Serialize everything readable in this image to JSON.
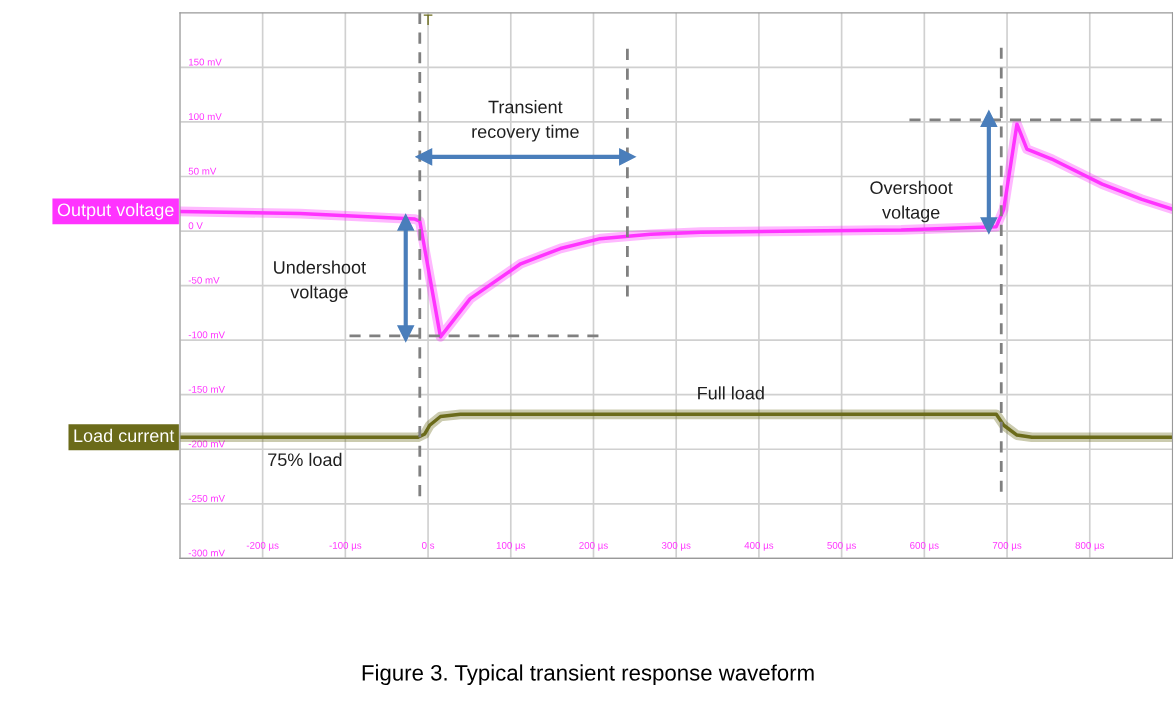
{
  "chart_data": {
    "type": "line",
    "xlim": [
      -300,
      900
    ],
    "ylim": [
      -300,
      200
    ],
    "xticks": [
      {
        "value": -300,
        "label": null
      },
      {
        "value": -200,
        "label": "-200 µs"
      },
      {
        "value": -100,
        "label": "-100 µs"
      },
      {
        "value": 0,
        "label": "0 s"
      },
      {
        "value": 100,
        "label": "100 µs"
      },
      {
        "value": 200,
        "label": "200 µs"
      },
      {
        "value": 300,
        "label": "300 µs"
      },
      {
        "value": 400,
        "label": "400 µs"
      },
      {
        "value": 500,
        "label": "500 µs"
      },
      {
        "value": 600,
        "label": "600 µs"
      },
      {
        "value": 700,
        "label": "700 µs"
      },
      {
        "value": 800,
        "label": "800 µs"
      }
    ],
    "yticks": [
      {
        "value": -300,
        "label": "-300 mV"
      },
      {
        "value": -250,
        "label": "-250 mV"
      },
      {
        "value": -200,
        "label": "-200 mV"
      },
      {
        "value": -150,
        "label": "-150 mV"
      },
      {
        "value": -100,
        "label": "-100 mV"
      },
      {
        "value": -50,
        "label": "-50 mV"
      },
      {
        "value": 0,
        "label": "0 V"
      },
      {
        "value": 50,
        "label": "50 mV"
      },
      {
        "value": 100,
        "label": "100 mV"
      },
      {
        "value": 150,
        "label": "150 mV"
      }
    ],
    "grid": true,
    "series": [
      {
        "name": "Output voltage",
        "color": "#ff33ff",
        "x": [
          -300,
          -155,
          -16,
          -10,
          15,
          51,
          112,
          160,
          208,
          269,
          330,
          451,
          572,
          687,
          696,
          712,
          724,
          754,
          815,
          863,
          900
        ],
        "values": [
          18,
          16,
          11,
          9,
          -97,
          -62,
          -30,
          -16,
          -7,
          -3,
          -1,
          0,
          1,
          4,
          20,
          98,
          75,
          66,
          43,
          29,
          20
        ]
      },
      {
        "name": "Load current",
        "color": "#6b6b1a",
        "x": [
          -300,
          -12,
          -4,
          2,
          15,
          39,
          687,
          696,
          712,
          730,
          900
        ],
        "values": [
          -189,
          -189,
          -186,
          -178,
          -170,
          -168,
          -168,
          -178,
          -187,
          -189,
          -189
        ]
      },
      {
        "type": "line",
        "color": "#808080",
        "line_style": "dashed",
        "x": [
          -10,
          -10
        ],
        "values": [
          200,
          -243
        ]
      },
      {
        "type": "line",
        "color": "#808080",
        "line_style": "dashed",
        "x": [
          241,
          241
        ],
        "values": [
          167,
          -60
        ]
      },
      {
        "type": "line",
        "color": "#808080",
        "line_style": "dashed",
        "x": [
          693,
          693
        ],
        "values": [
          168,
          -239
        ]
      },
      {
        "type": "line",
        "color": "#808080",
        "line_style": "dashed",
        "x": [
          -95,
          206
        ],
        "values": [
          -96,
          -96
        ]
      },
      {
        "type": "line",
        "color": "#808080",
        "line_style": "dashed",
        "x": [
          582,
          887
        ],
        "values": [
          102,
          102
        ]
      },
      {
        "type": "line",
        "color": "#4a7ebb",
        "marker": "triangle",
        "x": [
          -5,
          241
        ],
        "values": [
          68,
          68
        ]
      },
      {
        "type": "line",
        "color": "#4a7ebb",
        "marker": "triangle",
        "x": [
          -27,
          -27
        ],
        "values": [
          8,
          -94
        ]
      },
      {
        "type": "line",
        "color": "#4a7ebb",
        "marker": "triangle",
        "x": [
          678,
          678
        ],
        "values": [
          5,
          103
        ]
      }
    ],
    "annotations": [
      "T",
      "Transient\nrecovery time",
      "Undershoot\nvoltage",
      "Overshoot\nvoltage",
      "Full load",
      "75% load",
      "Figure 3. Typical transient response waveform"
    ]
  }
}
